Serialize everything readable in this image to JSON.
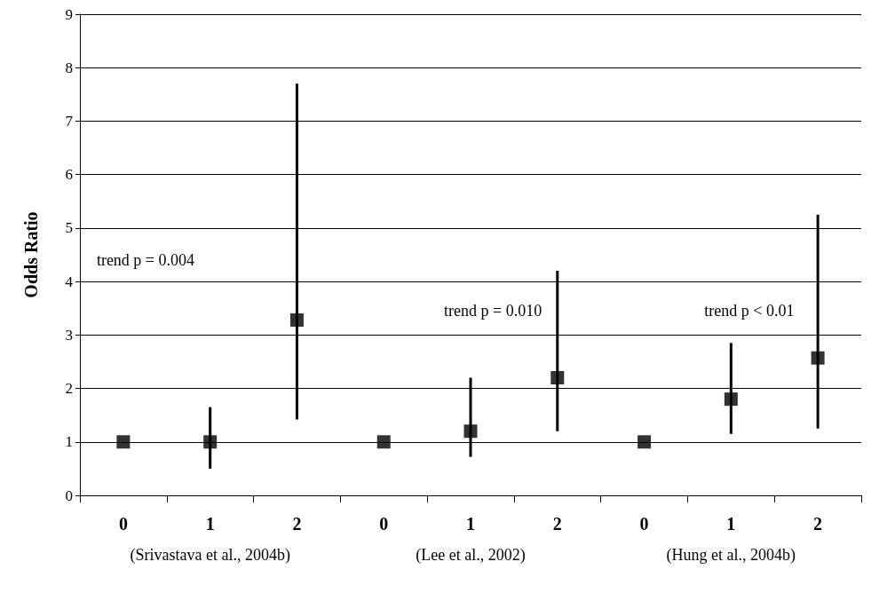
{
  "chart_data": {
    "type": "scatter",
    "ylabel": "Odds Ratio",
    "categories": [
      "0",
      "1",
      "2",
      "0",
      "1",
      "2",
      "0",
      "1",
      "2"
    ],
    "series": [
      {
        "color": "#000000",
        "values": [
          1,
          1,
          3.28,
          1,
          1.2,
          2.2,
          1,
          1.8,
          2.57
        ],
        "errors": [
          null,
          [
            0.5,
            1.65
          ],
          [
            1.42,
            7.7
          ],
          null,
          [
            0.72,
            2.2
          ],
          [
            1.2,
            4.2
          ],
          null,
          [
            1.15,
            2.85
          ],
          [
            1.25,
            5.25
          ]
        ]
      }
    ],
    "ylim": [
      0,
      9
    ],
    "yticks": [
      0,
      1,
      2,
      3,
      4,
      5,
      6,
      7,
      8,
      9
    ],
    "grid": "y",
    "marker": "square",
    "annotations": [
      "trend p = 0.004",
      "trend p = 0.010",
      "trend p < 0.01",
      "(Srivastava et al., 2004b)",
      "(Lee et al., 2002)",
      "(Hung et al., 2004b)"
    ]
  }
}
